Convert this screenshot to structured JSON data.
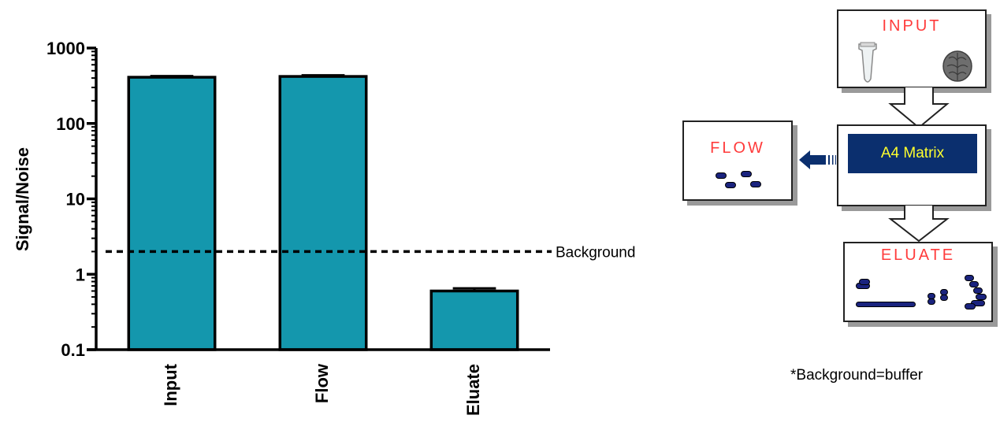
{
  "chart_data": {
    "type": "bar",
    "categories": [
      "Input",
      "Flow",
      "Eluate"
    ],
    "values": [
      410,
      420,
      0.6
    ],
    "errors": [
      15,
      15,
      0.05
    ],
    "ylabel": "Signal/Noise",
    "yscale": "log",
    "ylim": [
      0.1,
      1000
    ],
    "yticks": [
      "0.1",
      "1",
      "10",
      "100",
      "1000"
    ],
    "reference_line": {
      "value": 2,
      "label": "Background",
      "style": "dashed"
    },
    "bar_color": "#1497ad",
    "grid": false
  },
  "diagram": {
    "input_box": {
      "title": "INPUT",
      "icons": [
        "tube-icon",
        "brain-icon"
      ]
    },
    "matrix_box": {
      "label": "A4 Matrix"
    },
    "flow_box": {
      "title": "FLOW"
    },
    "eluate_box": {
      "title": "ELUATE"
    },
    "footnote": "*Background=buffer",
    "colors": {
      "title_red": "#ff3b3b",
      "matrix_bg": "#0b2f6e",
      "matrix_text": "#ffff2e",
      "arrow": "#0b2f6e"
    }
  }
}
